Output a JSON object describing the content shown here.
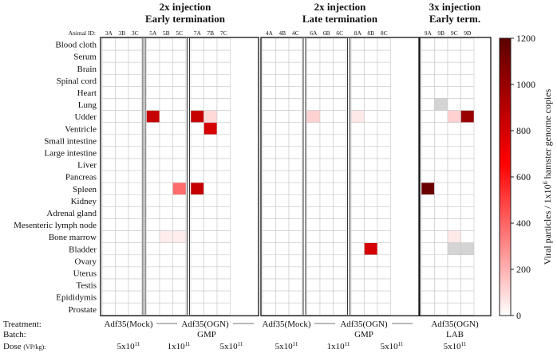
{
  "chart_data": {
    "type": "heatmap",
    "panels": [
      {
        "title_line1": "2x injection",
        "title_line2": "Early termination",
        "groups": [
          [
            "3A",
            "3B",
            "3C"
          ],
          [
            "5A",
            "5B",
            "5C"
          ],
          [
            "7A",
            "7B",
            "7C"
          ]
        ]
      },
      {
        "title_line1": "2x injection",
        "title_line2": "Late termination",
        "groups": [
          [
            "4A",
            "4B",
            "4C"
          ],
          [
            "6A",
            "6B",
            "6C"
          ],
          [
            "8A",
            "8B",
            "8C"
          ]
        ]
      },
      {
        "title_line1": "3x injection",
        "title_line2": "Early term.",
        "groups": [
          [
            "9A",
            "9B",
            "9C",
            "9D"
          ]
        ]
      }
    ],
    "animal_id_label": "Animal ID:",
    "organs": [
      "Blood cloth",
      "Serum",
      "Brain",
      "Spinal cord",
      "Heart",
      "Lung",
      "Udder",
      "Ventricle",
      "Small intestine",
      "Large intestine",
      "Liver",
      "Pancreas",
      "Spleen",
      "Kidney",
      "Adrenal gland",
      "Mesenteric lymph node",
      "Bone marrow",
      "Bladder",
      "Ovary",
      "Uterus",
      "Testis",
      "Epididymis",
      "Prostate"
    ],
    "values": [
      {
        "organ": "Udder",
        "animal": "5A",
        "value": 850
      },
      {
        "organ": "Udder",
        "animal": "7A",
        "value": 850
      },
      {
        "organ": "Udder",
        "animal": "7B",
        "value": 100
      },
      {
        "organ": "Ventricle",
        "animal": "7B",
        "value": 800
      },
      {
        "organ": "Spleen",
        "animal": "5C",
        "value": 380
      },
      {
        "organ": "Spleen",
        "animal": "7A",
        "value": 850
      },
      {
        "organ": "Bone marrow",
        "animal": "5B",
        "value": 50
      },
      {
        "organ": "Bone marrow",
        "animal": "5C",
        "value": 50
      },
      {
        "organ": "Udder",
        "animal": "6A",
        "value": 120
      },
      {
        "organ": "Udder",
        "animal": "8A",
        "value": 60
      },
      {
        "organ": "Bladder",
        "animal": "8B",
        "value": 800
      },
      {
        "organ": "Spleen",
        "animal": "9A",
        "value": 1150
      },
      {
        "organ": "Udder",
        "animal": "9C",
        "value": 120
      },
      {
        "organ": "Udder",
        "animal": "9D",
        "value": 1000
      },
      {
        "organ": "Bone marrow",
        "animal": "9C",
        "value": 60
      }
    ],
    "gray_cells": [
      {
        "organ": "Lung",
        "animal": "9B"
      },
      {
        "organ": "Bladder",
        "animal": "9C"
      },
      {
        "organ": "Bladder",
        "animal": "9D"
      }
    ],
    "colorbar": {
      "label": "Viral particles / 1x10",
      "label_sup": "6",
      "label_end": " hamster genome copies",
      "min": 0,
      "max": 1200,
      "ticks": [
        0,
        200,
        400,
        600,
        800,
        1000,
        1200
      ],
      "color_low": "#ffffff",
      "color_mid": "#ff0000",
      "color_high": "#5c0000"
    },
    "bottom": {
      "row_labels": [
        "Treatment:",
        "Batch:",
        "Dose"
      ],
      "dose_unit": "(VP/kg):",
      "panel1": {
        "treatment_a": "Adf35(Mock)",
        "treatment_b": "Adf35(OGN)",
        "batch": "GMP",
        "doses": [
          {
            "base": "5x10",
            "exp": "11"
          },
          {
            "base": "1x10",
            "exp": "11"
          },
          {
            "base": "5x10",
            "exp": "11"
          }
        ]
      },
      "panel2": {
        "treatment_a": "Adf35(Mock)",
        "treatment_b": "Adf35(OGN)",
        "batch": "GMP",
        "doses": [
          {
            "base": "5x10",
            "exp": "11"
          },
          {
            "base": "1x10",
            "exp": "11"
          },
          {
            "base": "5x10",
            "exp": "11"
          }
        ]
      },
      "panel3": {
        "treatment": "Adf35(OGN)",
        "batch": "LAB",
        "dose": {
          "base": "5x10",
          "exp": "11"
        }
      }
    }
  }
}
